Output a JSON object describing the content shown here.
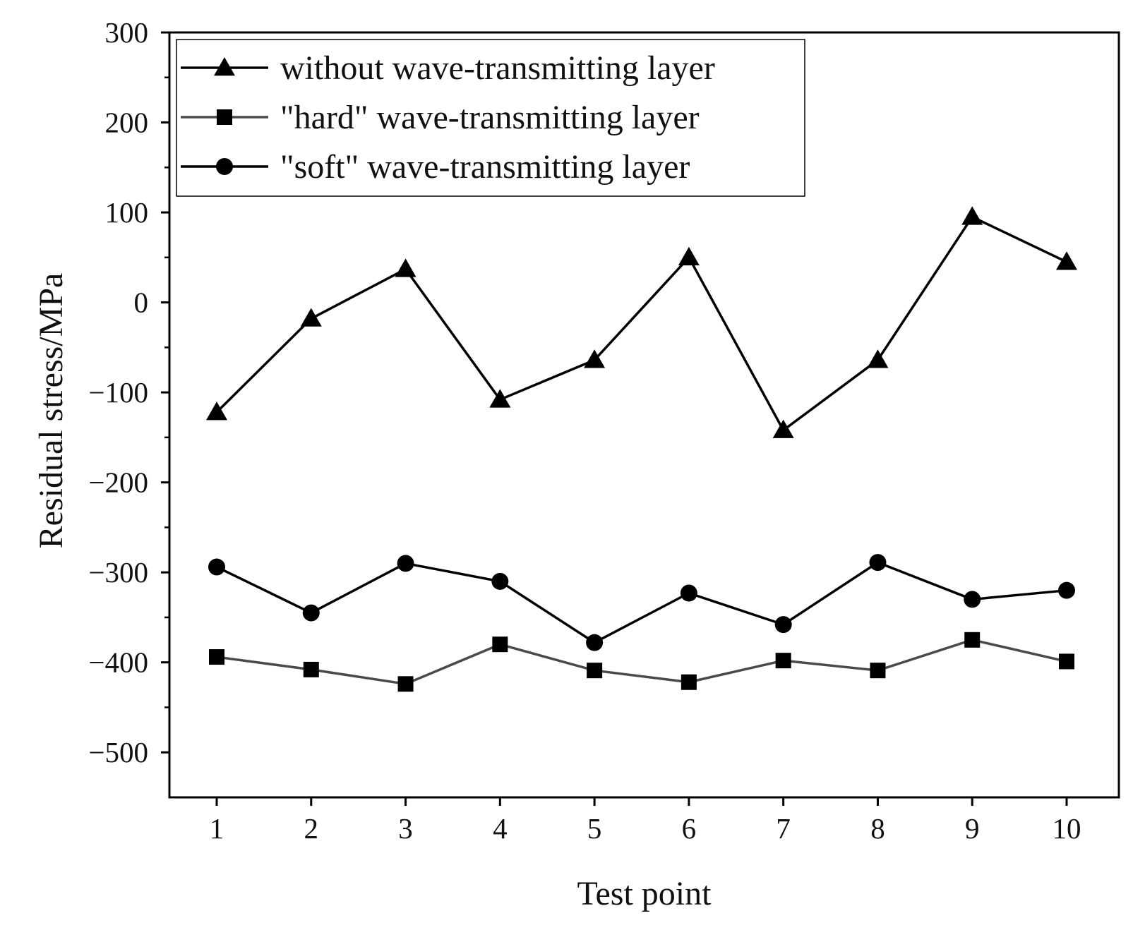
{
  "chart_data": {
    "type": "line",
    "title": "",
    "xlabel": "Test point",
    "ylabel": "Residual stress/MPa",
    "x": [
      1,
      2,
      3,
      4,
      5,
      6,
      7,
      8,
      9,
      10
    ],
    "x_tick_labels": [
      "1",
      "2",
      "3",
      "4",
      "5",
      "6",
      "7",
      "8",
      "9",
      "10"
    ],
    "xlim": [
      0.5,
      10.5
    ],
    "ylim": [
      -550,
      300
    ],
    "y_ticks": [
      300,
      200,
      100,
      0,
      -100,
      -200,
      -300,
      -400,
      -500
    ],
    "y_tick_labels": [
      "300",
      "200",
      "100",
      "0",
      "−100",
      "−200",
      "−300",
      "−400",
      "−500"
    ],
    "grid": false,
    "legend_position": "top-left",
    "series": [
      {
        "name": "without wave-transmitting layer",
        "marker": "triangle",
        "color": "#000000",
        "values": [
          -122,
          -18,
          37,
          -108,
          -64,
          50,
          -142,
          -64,
          95,
          45
        ]
      },
      {
        "name": "\"hard\" wave-transmitting layer",
        "marker": "square",
        "color": "#4a4a4a",
        "values": [
          -394,
          -408,
          -424,
          -380,
          -409,
          -422,
          -398,
          -409,
          -375,
          -399
        ]
      },
      {
        "name": "\"soft\" wave-transmitting layer",
        "marker": "circle",
        "color": "#000000",
        "values": [
          -294,
          -345,
          -290,
          -310,
          -378,
          -323,
          -358,
          -289,
          -330,
          -320
        ]
      }
    ]
  }
}
